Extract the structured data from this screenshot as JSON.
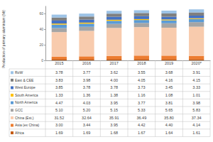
{
  "chart_data": {
    "type": "bar",
    "stacked": true,
    "grid": false,
    "ylabel": "Production of primary aluminium (Mt)",
    "categories": [
      "2015",
      "2016",
      "2017",
      "2018",
      "2019",
      "2020*"
    ],
    "ylim": [
      0,
      70
    ],
    "yticks": [
      0,
      20,
      40,
      60
    ],
    "series": [
      {
        "name": "Africa",
        "color": "#c55a11",
        "values": [
          1.69,
          1.69,
          1.68,
          1.67,
          1.64,
          1.61
        ],
        "value_labels": [
          "1.69",
          "1.69",
          "1.68",
          "1.67",
          "1.64",
          "1.61"
        ]
      },
      {
        "name": "Asia (ex China)",
        "color": "#ed7d31",
        "values": [
          3.0,
          3.44,
          3.95,
          4.42,
          4.4,
          4.14
        ],
        "value_labels": [
          "3.00",
          "3.44",
          "3.95",
          "4.42",
          "4.40",
          "4.14"
        ]
      },
      {
        "name": "China (Est.)",
        "color": "#f8cbad",
        "values": [
          31.52,
          32.64,
          35.91,
          36.49,
          35.8,
          37.34
        ],
        "value_labels": [
          "31.52",
          "32.64",
          "35.91",
          "36.49",
          "35.80",
          "37.34"
        ]
      },
      {
        "name": "GCC",
        "color": "#a5a5a5",
        "values": [
          5.1,
          5.2,
          5.15,
          5.33,
          5.65,
          5.83
        ],
        "value_labels": [
          "5.10",
          "5.20",
          "5.15",
          "5.33",
          "5.65",
          "5.83"
        ]
      },
      {
        "name": "North America",
        "color": "#5b9bd5",
        "values": [
          4.47,
          4.03,
          3.95,
          3.77,
          3.81,
          3.98
        ],
        "value_labels": [
          "4.47",
          "4.03",
          "3.95",
          "3.77",
          "3.81",
          "3.98"
        ]
      },
      {
        "name": "South America",
        "color": "#ffc000",
        "values": [
          1.33,
          1.36,
          1.38,
          1.16,
          1.08,
          1.01
        ],
        "value_labels": [
          "1.33",
          "1.36",
          "1.38",
          "1.16",
          "1.08",
          "1.01"
        ]
      },
      {
        "name": "West Europe",
        "color": "#4472c4",
        "values": [
          3.85,
          3.78,
          3.78,
          3.73,
          3.45,
          3.33
        ],
        "value_labels": [
          "3.85",
          "3.78",
          "3.78",
          "3.73",
          "3.45",
          "3.33"
        ]
      },
      {
        "name": "East & CEE",
        "color": "#7f7f7f",
        "values": [
          3.83,
          3.98,
          4.0,
          4.05,
          4.16,
          4.15
        ],
        "value_labels": [
          "3.83",
          "3.98",
          "4.00",
          "4.05",
          "4.16",
          "4.15"
        ]
      },
      {
        "name": "RoW",
        "color": "#9dc3e6",
        "values": [
          3.78,
          3.77,
          3.62,
          3.55,
          3.68,
          3.91
        ],
        "value_labels": [
          "3.78",
          "3.77",
          "3.62",
          "3.55",
          "3.68",
          "3.91"
        ]
      }
    ]
  }
}
